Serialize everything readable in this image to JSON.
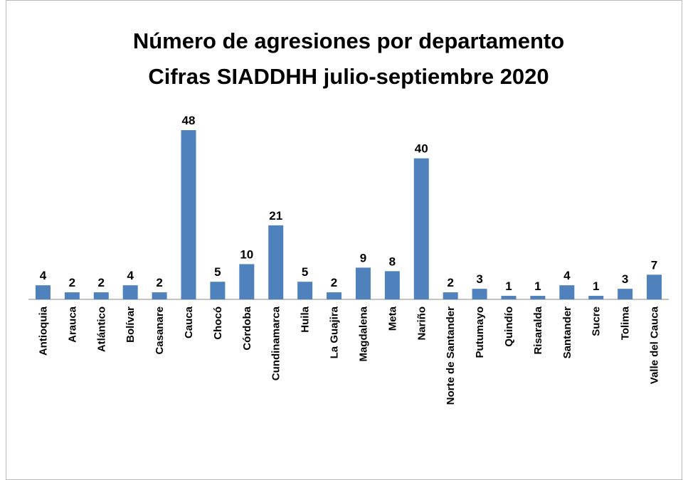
{
  "chart_data": {
    "type": "bar",
    "title": "Número de agresiones por departamento",
    "subtitle": "Cifras SIADDHH julio-septiembre 2020",
    "categories": [
      "Antioquia",
      "Arauca",
      "Atlántico",
      "Bolívar",
      "Casanare",
      "Cauca",
      "Chocó",
      "Córdoba",
      "Cundinamarca",
      "Huila",
      "La Guajira",
      "Magdalena",
      "Meta",
      "Nariño",
      "Norte de Santander",
      "Putumayo",
      "Quindío",
      "Risaralda",
      "Santander",
      "Sucre",
      "Tolima",
      "Valle del Cauca"
    ],
    "values": [
      4,
      2,
      2,
      4,
      2,
      48,
      5,
      10,
      21,
      5,
      2,
      9,
      8,
      40,
      2,
      3,
      1,
      1,
      4,
      1,
      3,
      7
    ],
    "color": "#4f81bd"
  }
}
